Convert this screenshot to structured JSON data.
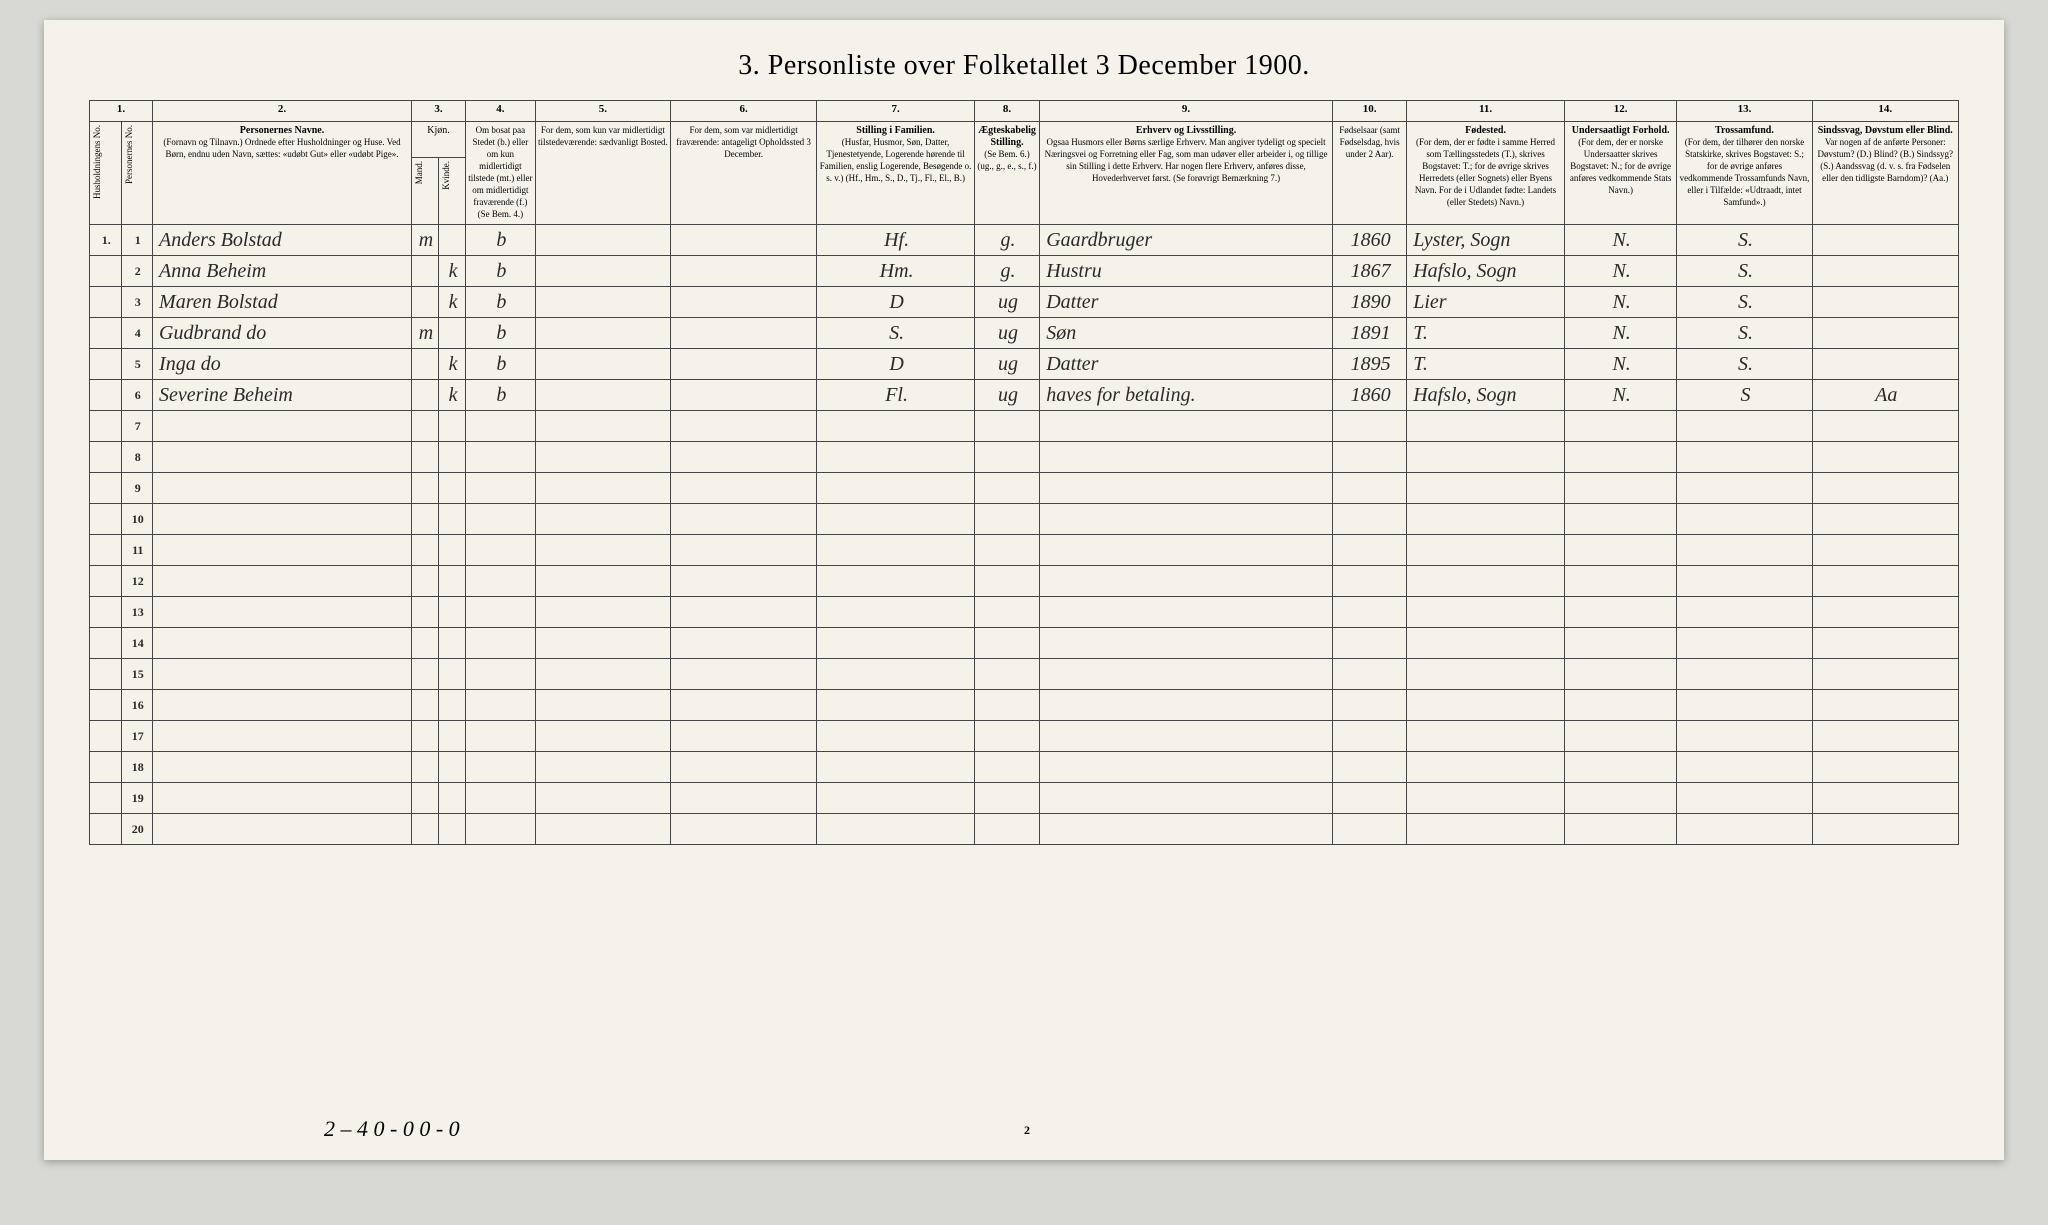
{
  "title": "3. Personliste over Folketallet 3 December 1900.",
  "columns_numbers": [
    "1.",
    "2.",
    "3.",
    "4.",
    "5.",
    "6.",
    "7.",
    "8.",
    "9.",
    "10.",
    "11.",
    "12.",
    "13.",
    "14."
  ],
  "headers": {
    "c1a": "Husholdningens No.",
    "c1b": "Personernes No.",
    "c2_title": "Personernes Navne.",
    "c2_sub": "(Fornavn og Tilnavn.)\nOrdnede efter Husholdninger og Huse.\nVed Børn, endnu uden Navn, sættes: «udøbt Gut» eller «udøbt Pige».",
    "c3_title": "Kjøn.",
    "c3_m": "Mand.",
    "c3_k": "Kvinde.",
    "c3_sub": "m. k.",
    "c4": "Om bosat paa Stedet (b.) eller om kun midlertidigt tilstede (mt.) eller om midlertidigt fraværende (f.) (Se Bem. 4.)",
    "c5": "For dem, som kun var midlertidigt tilstedeværende:\nsædvanligt Bosted.",
    "c6": "For dem, som var midlertidigt fraværende:\nantageligt Opholdssted 3 December.",
    "c7_title": "Stilling i Familien.",
    "c7_sub": "(Husfar, Husmor, Søn, Datter, Tjenestetyende, Logerende hørende til Familien, enslig Logerende, Besøgende o. s. v.)\n(Hf., Hm., S., D., Tj., Fl., El., B.)",
    "c8_title": "Ægteskabelig Stilling.",
    "c8_sub": "(Se Bem. 6.)\n(ug., g., e., s., f.)",
    "c9_title": "Erhverv og Livsstilling.",
    "c9_sub": "Ogsaa Husmors eller Børns særlige Erhverv. Man angiver tydeligt og specielt Næringsvei og Forretning eller Fag, som man udøver eller arbeider i, og tillige sin Stilling i dette Erhverv. Har nogen flere Erhverv, anføres disse, Hovederhvervet først.\n(Se forøvrigt Bemærkning 7.)",
    "c10": "Fødselsaar\n(samt Fødselsdag, hvis under 2 Aar).",
    "c11_title": "Fødested.",
    "c11_sub": "(For dem, der er fødte i samme Herred som Tællingsstedets (T.), skrives Bogstavet: T.; for de øvrige skrives Herredets (eller Sognets) eller Byens Navn. For de i Udlandet fødte: Landets (eller Stedets) Navn.)",
    "c12_title": "Undersaatligt Forhold.",
    "c12_sub": "(For dem, der er norske Undersaatter skrives Bogstavet: N.; for de øvrige anføres vedkommende Stats Navn.)",
    "c13_title": "Trossamfund.",
    "c13_sub": "(For dem, der tilhører den norske Statskirke, skrives Bogstavet: S.; for de øvrige anføres vedkommende Trossamfunds Navn, eller i Tilfælde: «Udtraadt, intet Samfund».)",
    "c14_title": "Sindssvag, Døvstum eller Blind.",
    "c14_sub": "Var nogen af de anførte Personer:\nDøvstum? (D.)\nBlind? (B.)\nSindssyg? (S.)\nAandssvag (d. v. s. fra Fødselen eller den tidligste Barndom)? (Aa.)"
  },
  "col_widths": {
    "c1a": 28,
    "c1b": 28,
    "c2": 230,
    "c3m": 24,
    "c3k": 24,
    "c4": 62,
    "c5": 120,
    "c6": 130,
    "c7": 140,
    "c8": 58,
    "c9": 260,
    "c10": 66,
    "c11": 140,
    "c12": 100,
    "c13": 120,
    "c14": 130
  },
  "rows": [
    {
      "hh": "1.",
      "pn": "1",
      "name": "Anders Bolstad",
      "m": "m",
      "k": "",
      "b": "b",
      "c5": "",
      "c6": "",
      "fam": "Hf.",
      "ekt": "g.",
      "erv": "Gaardbruger",
      "aar": "1860",
      "fst": "Lyster, Sogn",
      "und": "N.",
      "tro": "S.",
      "sind": ""
    },
    {
      "hh": "",
      "pn": "2",
      "name": "Anna Beheim",
      "m": "",
      "k": "k",
      "b": "b",
      "c5": "",
      "c6": "",
      "fam": "Hm.",
      "ekt": "g.",
      "erv": "Hustru",
      "aar": "1867",
      "fst": "Hafslo, Sogn",
      "und": "N.",
      "tro": "S.",
      "sind": ""
    },
    {
      "hh": "",
      "pn": "3",
      "name": "Maren Bolstad",
      "m": "",
      "k": "k",
      "b": "b",
      "c5": "",
      "c6": "",
      "fam": "D",
      "ekt": "ug",
      "erv": "Datter",
      "aar": "1890",
      "fst": "Lier",
      "und": "N.",
      "tro": "S.",
      "sind": ""
    },
    {
      "hh": "",
      "pn": "4",
      "name": "Gudbrand do",
      "m": "m",
      "k": "",
      "b": "b",
      "c5": "",
      "c6": "",
      "fam": "S.",
      "ekt": "ug",
      "erv": "Søn",
      "aar": "1891",
      "fst": "T.",
      "und": "N.",
      "tro": "S.",
      "sind": ""
    },
    {
      "hh": "",
      "pn": "5",
      "name": "Inga do",
      "m": "",
      "k": "k",
      "b": "b",
      "c5": "",
      "c6": "",
      "fam": "D",
      "ekt": "ug",
      "erv": "Datter",
      "aar": "1895",
      "fst": "T.",
      "und": "N.",
      "tro": "S.",
      "sind": ""
    },
    {
      "hh": "",
      "pn": "6",
      "name": "Severine Beheim",
      "m": "",
      "k": "k",
      "b": "b",
      "c5": "",
      "c6": "",
      "fam": "Fl.",
      "ekt": "ug",
      "erv": "haves for betaling.",
      "aar": "1860",
      "fst": "Hafslo, Sogn",
      "und": "N.",
      "tro": "S",
      "sind": "Aa"
    }
  ],
  "empty_row_nums": [
    "7",
    "8",
    "9",
    "10",
    "11",
    "12",
    "13",
    "14",
    "15",
    "16",
    "17",
    "18",
    "19",
    "20"
  ],
  "footer_note": "2 – 4   0 - 0   0 - 0",
  "page_number": "2",
  "colors": {
    "page_bg": "#f5f2ea",
    "body_bg": "#d8d8d4",
    "border": "#444444",
    "ink": "#2a2a2a"
  }
}
